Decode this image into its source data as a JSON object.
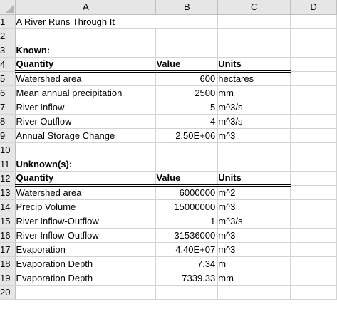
{
  "columns": [
    "A",
    "B",
    "C",
    "D"
  ],
  "rows": [
    {
      "n": "1",
      "a": "A River Runs Through It",
      "b": "",
      "c": "",
      "style": "title"
    },
    {
      "n": "2",
      "a": "",
      "b": "",
      "c": ""
    },
    {
      "n": "3",
      "a": "Known:",
      "b": "",
      "c": "",
      "style": "section"
    },
    {
      "n": "4",
      "a": "Quantity",
      "b": "Value",
      "c": "Units",
      "style": "header"
    },
    {
      "n": "5",
      "a": "Watershed area",
      "b": "600",
      "c": "hectares"
    },
    {
      "n": "6",
      "a": "Mean annual precipitation",
      "b": "2500",
      "c": "mm"
    },
    {
      "n": "7",
      "a": "River Inflow",
      "b": "5",
      "c": "m^3/s"
    },
    {
      "n": "8",
      "a": "River Outflow",
      "b": "4",
      "c": "m^3/s"
    },
    {
      "n": "9",
      "a": "Annual Storage Change",
      "b": "2.50E+06",
      "c": "m^3"
    },
    {
      "n": "10",
      "a": "",
      "b": "",
      "c": ""
    },
    {
      "n": "11",
      "a": "Unknown(s):",
      "b": "",
      "c": "",
      "style": "section"
    },
    {
      "n": "12",
      "a": "Quantity",
      "b": "Value",
      "c": "Units",
      "style": "header"
    },
    {
      "n": "13",
      "a": "Watershed area",
      "b": "6000000",
      "c": "m^2"
    },
    {
      "n": "14",
      "a": "Precip Volume",
      "b": "15000000",
      "c": "m^3"
    },
    {
      "n": "15",
      "a": "River Inflow-Outflow",
      "b": "1",
      "c": "m^3/s"
    },
    {
      "n": "16",
      "a": "River Inflow-Outflow",
      "b": "31536000",
      "c": "m^3"
    },
    {
      "n": "17",
      "a": "Evaporation",
      "b": "4.40E+07",
      "c": "m^3"
    },
    {
      "n": "18",
      "a": "Evaporation Depth",
      "b": "7.34",
      "c": "m"
    },
    {
      "n": "19",
      "a": "Evaporation Depth",
      "b": "7339.33",
      "c": "mm"
    },
    {
      "n": "20",
      "a": "",
      "b": "",
      "c": ""
    }
  ]
}
